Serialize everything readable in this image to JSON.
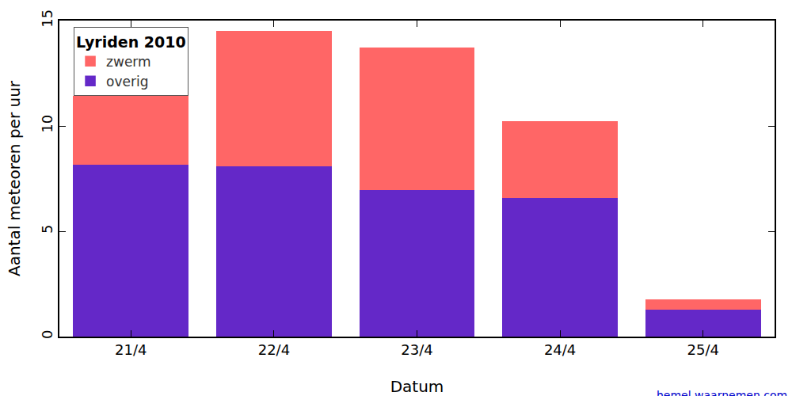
{
  "chart_data": {
    "type": "bar",
    "title": "Lyriden 2010",
    "x_label": "Datum",
    "y_label": "Aantal meteoren per uur",
    "categories": [
      "21/4",
      "22/4",
      "23/4",
      "24/4",
      "25/4"
    ],
    "series": [
      {
        "name": "overig",
        "color": "#6428c8",
        "values": [
          8.2,
          8.1,
          7.0,
          6.6,
          1.3
        ]
      },
      {
        "name": "zwerm",
        "color": "#ff6666",
        "values": [
          3.2,
          6.4,
          6.7,
          3.6,
          0.45
        ]
      }
    ],
    "stacked": true,
    "ylim": [
      0,
      15
    ],
    "yticks": [
      0,
      5,
      10,
      15
    ],
    "grid": false,
    "legend": "upper left",
    "annotations": [
      "hemel.waarnemen.com"
    ]
  }
}
